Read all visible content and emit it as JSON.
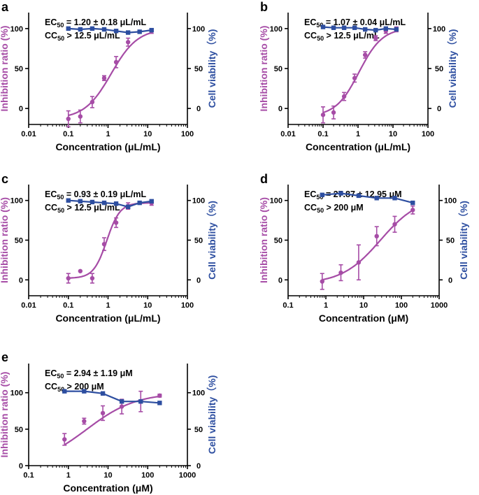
{
  "colors": {
    "inhibition": "#a64ca6",
    "viability": "#2d4ea0",
    "axis": "#000000"
  },
  "chart_data": [
    {
      "panel": "a",
      "type": "line",
      "ec50_prefix": "EC",
      "ec50_sub": "50",
      "ec50_value": " = 1.20 ± 0.18 μL/mL",
      "cc50_prefix": "CC",
      "cc50_sub": "50",
      "cc50_value": " > 12.5 μL/mL",
      "xlabel": "Concentration  (μL/mL)",
      "ylabel_left": "Inhibition ratio (%)",
      "ylabel_right": "Cell viability（%)",
      "x_ticks": [
        0.01,
        0.1,
        1,
        10,
        100
      ],
      "x_tick_labels": [
        "0.01",
        "0.1",
        "1",
        "10",
        "100"
      ],
      "xlim": [
        0.01,
        100
      ],
      "y_ticks": [
        0,
        50,
        100
      ],
      "y_tick_labels": [
        "0",
        "50",
        "100"
      ],
      "ylim": [
        -20,
        120
      ],
      "series": [
        {
          "name": "Inhibition ratio",
          "axis": "left",
          "marker": "circle",
          "x": [
            0.1,
            0.2,
            0.4,
            0.8,
            1.6,
            3.2,
            12.5
          ],
          "y": [
            -13,
            -10,
            8,
            38,
            58,
            83,
            97
          ],
          "err": [
            10,
            8,
            7,
            3,
            7,
            5,
            3
          ],
          "fit": {
            "ec50": 1.2,
            "hill": 1.3,
            "bottom": -13,
            "top": 100
          }
        },
        {
          "name": "Cell viability",
          "axis": "right",
          "marker": "square",
          "x": [
            0.1,
            0.2,
            0.4,
            0.8,
            1.6,
            3.2,
            6.25,
            12.5
          ],
          "y": [
            100,
            99,
            100,
            99,
            97,
            95,
            96,
            98
          ]
        }
      ]
    },
    {
      "panel": "b",
      "type": "line",
      "ec50_prefix": "EC",
      "ec50_sub": "50",
      "ec50_value": " = 1.07 ± 0.04 μL/mL",
      "cc50_prefix": "CC",
      "cc50_sub": "50",
      "cc50_value": " > 12.5 μL/mL",
      "xlabel": "Concentration  (μL/mL)",
      "ylabel_left": "Inhibition ratio (%)",
      "ylabel_right": "Cell viability（%)",
      "x_ticks": [
        0.01,
        0.1,
        1,
        10,
        100
      ],
      "x_tick_labels": [
        "0.01",
        "0.1",
        "1",
        "10",
        "100"
      ],
      "xlim": [
        0.01,
        100
      ],
      "y_ticks": [
        0,
        50,
        100
      ],
      "y_tick_labels": [
        "0",
        "50",
        "100"
      ],
      "ylim": [
        -20,
        120
      ],
      "series": [
        {
          "name": "Inhibition ratio",
          "axis": "left",
          "marker": "circle",
          "x": [
            0.1,
            0.2,
            0.4,
            0.8,
            1.6,
            3.2,
            6.25,
            12.5
          ],
          "y": [
            -8,
            -5,
            15,
            38,
            67,
            88,
            97,
            99
          ],
          "err": [
            10,
            8,
            5,
            5,
            4,
            3,
            3,
            3
          ],
          "fit": {
            "ec50": 1.07,
            "hill": 1.3,
            "bottom": -10,
            "top": 101
          }
        },
        {
          "name": "Cell viability",
          "axis": "right",
          "marker": "square",
          "x": [
            0.1,
            0.2,
            0.4,
            0.8,
            1.6,
            3.2,
            6.25,
            12.5
          ],
          "y": [
            102,
            101,
            101,
            101,
            99,
            98,
            100,
            99
          ]
        }
      ]
    },
    {
      "panel": "c",
      "type": "line",
      "ec50_prefix": "EC",
      "ec50_sub": "50",
      "ec50_value": " = 0.93 ± 0.19 μL/mL",
      "cc50_prefix": "CC",
      "cc50_sub": "50",
      "cc50_value": " > 12.5 μL/mL",
      "xlabel": "Concentration  (μL/mL)",
      "ylabel_left": "Inhibition ratio (%)",
      "ylabel_right": "Cell viability（%)",
      "x_ticks": [
        0.01,
        0.1,
        1,
        10,
        100
      ],
      "x_tick_labels": [
        "0.01",
        "0.1",
        "1",
        "10",
        "100"
      ],
      "xlim": [
        0.01,
        100
      ],
      "y_ticks": [
        0,
        50,
        100
      ],
      "y_tick_labels": [
        "0",
        "50",
        "100"
      ],
      "ylim": [
        -20,
        120
      ],
      "series": [
        {
          "name": "Inhibition ratio",
          "axis": "left",
          "marker": "circle",
          "x": [
            0.1,
            0.2,
            0.4,
            0.8,
            1.6,
            3.2,
            12.5
          ],
          "y": [
            2,
            11,
            2,
            45,
            72,
            93,
            97
          ],
          "err": [
            6,
            0,
            6,
            8,
            6,
            4,
            3
          ],
          "fit": {
            "ec50": 0.93,
            "hill": 2.6,
            "bottom": 2,
            "top": 97
          }
        },
        {
          "name": "Cell viability",
          "axis": "right",
          "marker": "square",
          "x": [
            0.1,
            0.2,
            0.4,
            0.8,
            1.6,
            3.2,
            6.25,
            12.5
          ],
          "y": [
            100,
            99,
            98,
            97,
            96,
            92,
            97,
            99
          ]
        }
      ]
    },
    {
      "panel": "d",
      "type": "line",
      "ec50_prefix": "EC",
      "ec50_sub": "50",
      "ec50_value": " = 27.87 ± 12.95 μM",
      "cc50_prefix": "CC",
      "cc50_sub": "50",
      "cc50_value": " > 200 μM",
      "xlabel": "Concentration  (μM)",
      "ylabel_left": "Inhibition ratio (%)",
      "ylabel_right": "Cell viability（%)",
      "x_ticks": [
        0.1,
        1,
        10,
        100,
        1000
      ],
      "x_tick_labels": [
        "0.1",
        "1",
        "10",
        "100",
        "1000"
      ],
      "xlim": [
        0.1,
        1000
      ],
      "y_ticks": [
        0,
        50,
        100
      ],
      "y_tick_labels": [
        "0",
        "50",
        "100"
      ],
      "ylim": [
        -20,
        120
      ],
      "series": [
        {
          "name": "Inhibition ratio",
          "axis": "left",
          "marker": "circle",
          "x": [
            0.8,
            2.5,
            7.4,
            22.2,
            66.7,
            200
          ],
          "y": [
            -2,
            9,
            22,
            55,
            70,
            88
          ],
          "err": [
            10,
            10,
            22,
            12,
            10,
            5
          ],
          "fit": {
            "ec50": 27.87,
            "hill": 0.85,
            "bottom": -5,
            "top": 105
          }
        },
        {
          "name": "Cell viability",
          "axis": "right",
          "marker": "square",
          "x": [
            0.8,
            2.5,
            7.4,
            22.2,
            66.7,
            200
          ],
          "y": [
            107,
            109,
            106,
            103,
            103,
            97
          ]
        }
      ]
    },
    {
      "panel": "e",
      "type": "line",
      "ec50_prefix": "EC",
      "ec50_sub": "50",
      "ec50_value": " = 2.94 ± 1.19 μM",
      "cc50_prefix": "CC",
      "cc50_sub": "50",
      "cc50_value": " > 200 μM",
      "xlabel": "Concentration  (μM)",
      "ylabel_left": "Inhibition ratio (%)",
      "ylabel_right": "Cell viability（%)",
      "x_ticks": [
        0.1,
        1,
        10,
        100,
        1000
      ],
      "x_tick_labels": [
        "0.1",
        "1",
        "10",
        "100",
        "1000"
      ],
      "xlim": [
        0.1,
        1000
      ],
      "y_ticks": [
        0,
        50,
        100
      ],
      "y_tick_labels": [
        "0",
        "50",
        "100"
      ],
      "ylim": [
        0,
        140
      ],
      "series": [
        {
          "name": "Inhibition ratio",
          "axis": "left",
          "marker": "circle",
          "x": [
            0.8,
            2.5,
            7.4,
            22.2,
            66.7,
            200
          ],
          "y": [
            36,
            61,
            72,
            81,
            88,
            96
          ],
          "err": [
            8,
            4,
            10,
            10,
            14,
            2
          ],
          "fit": {
            "ec50": 2.94,
            "hill": 0.7,
            "bottom": 0,
            "top": 100
          }
        },
        {
          "name": "Cell viability",
          "axis": "right",
          "marker": "square",
          "x": [
            0.8,
            2.5,
            7.4,
            22.2,
            66.7,
            200
          ],
          "y": [
            102,
            102,
            99,
            88,
            88,
            86
          ]
        }
      ]
    }
  ]
}
